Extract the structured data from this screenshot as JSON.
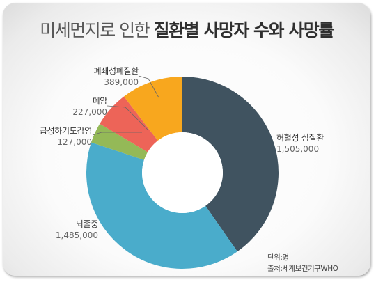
{
  "title": {
    "light": "미세먼지로 인한",
    "bold": "질환별 사망자 수와 사망률"
  },
  "notes": {
    "unit": "단위:명",
    "source": "출처:세계보건기구WHO"
  },
  "chart_data": {
    "type": "pie",
    "variant": "donut",
    "start": "top",
    "direction": "clockwise",
    "slices": [
      {
        "label": "허혈성 심질환",
        "value": 1505000,
        "value_label": "1,505,000",
        "color": "#405360"
      },
      {
        "label": "뇌졸중",
        "value": 1485000,
        "value_label": "1,485,000",
        "color": "#4aaccb"
      },
      {
        "label": "급성하기도감염",
        "value": 127000,
        "value_label": "127,000",
        "color": "#94b957"
      },
      {
        "label": "폐암",
        "value": 227000,
        "value_label": "227,000",
        "color": "#ed6458"
      },
      {
        "label": "폐쇄성폐질환",
        "value": 389000,
        "value_label": "389,000",
        "color": "#f8a71e"
      }
    ]
  }
}
